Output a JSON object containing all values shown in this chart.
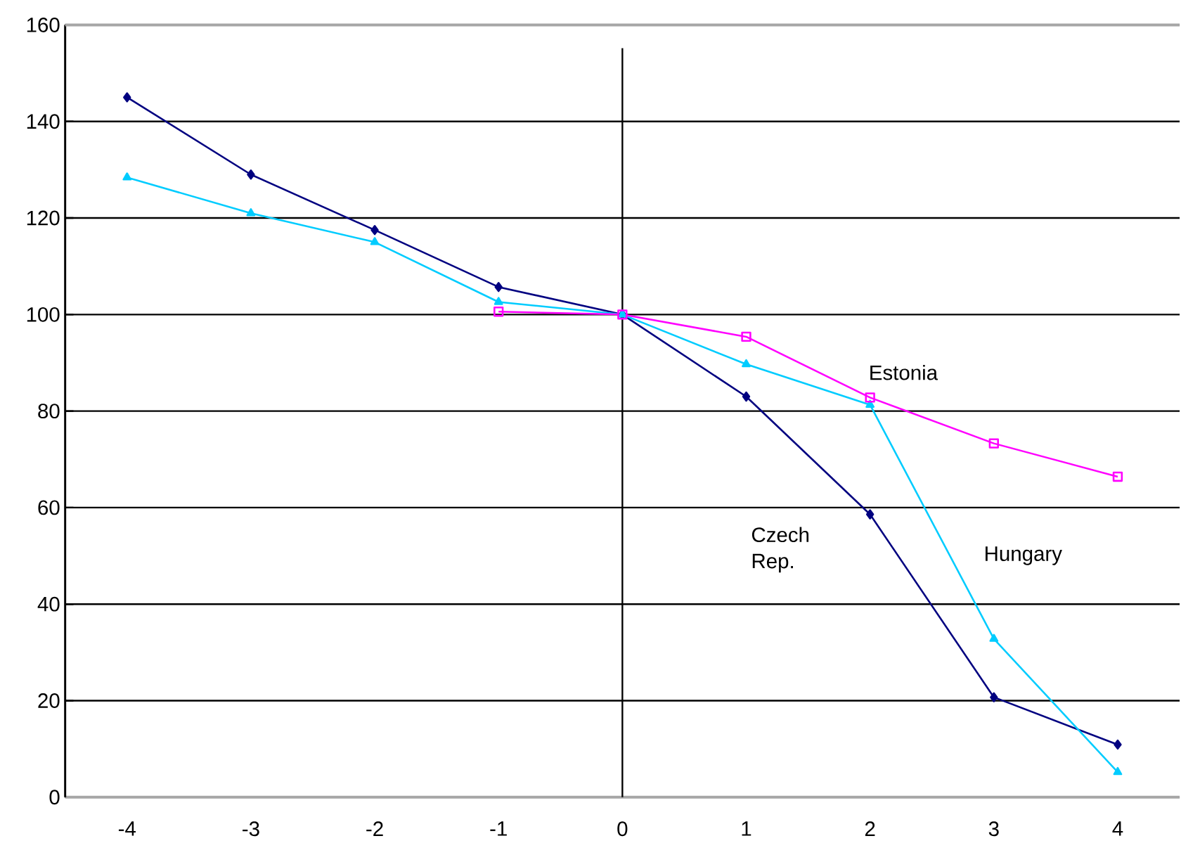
{
  "chart_data": {
    "type": "line",
    "x": [
      -4,
      -3,
      -2,
      -1,
      0,
      1,
      2,
      3,
      4
    ],
    "series": [
      {
        "name": "Czech Rep.",
        "color": "#000080",
        "marker": "diamond",
        "values": [
          145,
          129,
          117.5,
          105.7,
          100,
          83,
          58.6,
          20.7,
          10.9
        ]
      },
      {
        "name": "Hungary",
        "color": "#00ccff",
        "marker": "triangle",
        "values": [
          128.4,
          121,
          115,
          102.6,
          100,
          89.7,
          81.3,
          32.8,
          5.2
        ]
      },
      {
        "name": "Estonia",
        "color": "#ff00ff",
        "marker": "square",
        "values": [
          null,
          null,
          null,
          100.6,
          100,
          95.4,
          82.8,
          73.3,
          66.4
        ]
      }
    ],
    "xlim": [
      -4.5,
      4.5
    ],
    "xticks": [
      -4,
      -3,
      -2,
      -1,
      0,
      1,
      2,
      3,
      4
    ],
    "ylim": [
      0,
      160
    ],
    "yticks": [
      0,
      20,
      40,
      60,
      80,
      100,
      120,
      140,
      160
    ],
    "grid": "y",
    "legend": false,
    "line_style": "solid",
    "ref_lines": [
      {
        "axis": "x",
        "value": 0,
        "color": "#000000"
      }
    ]
  }
}
